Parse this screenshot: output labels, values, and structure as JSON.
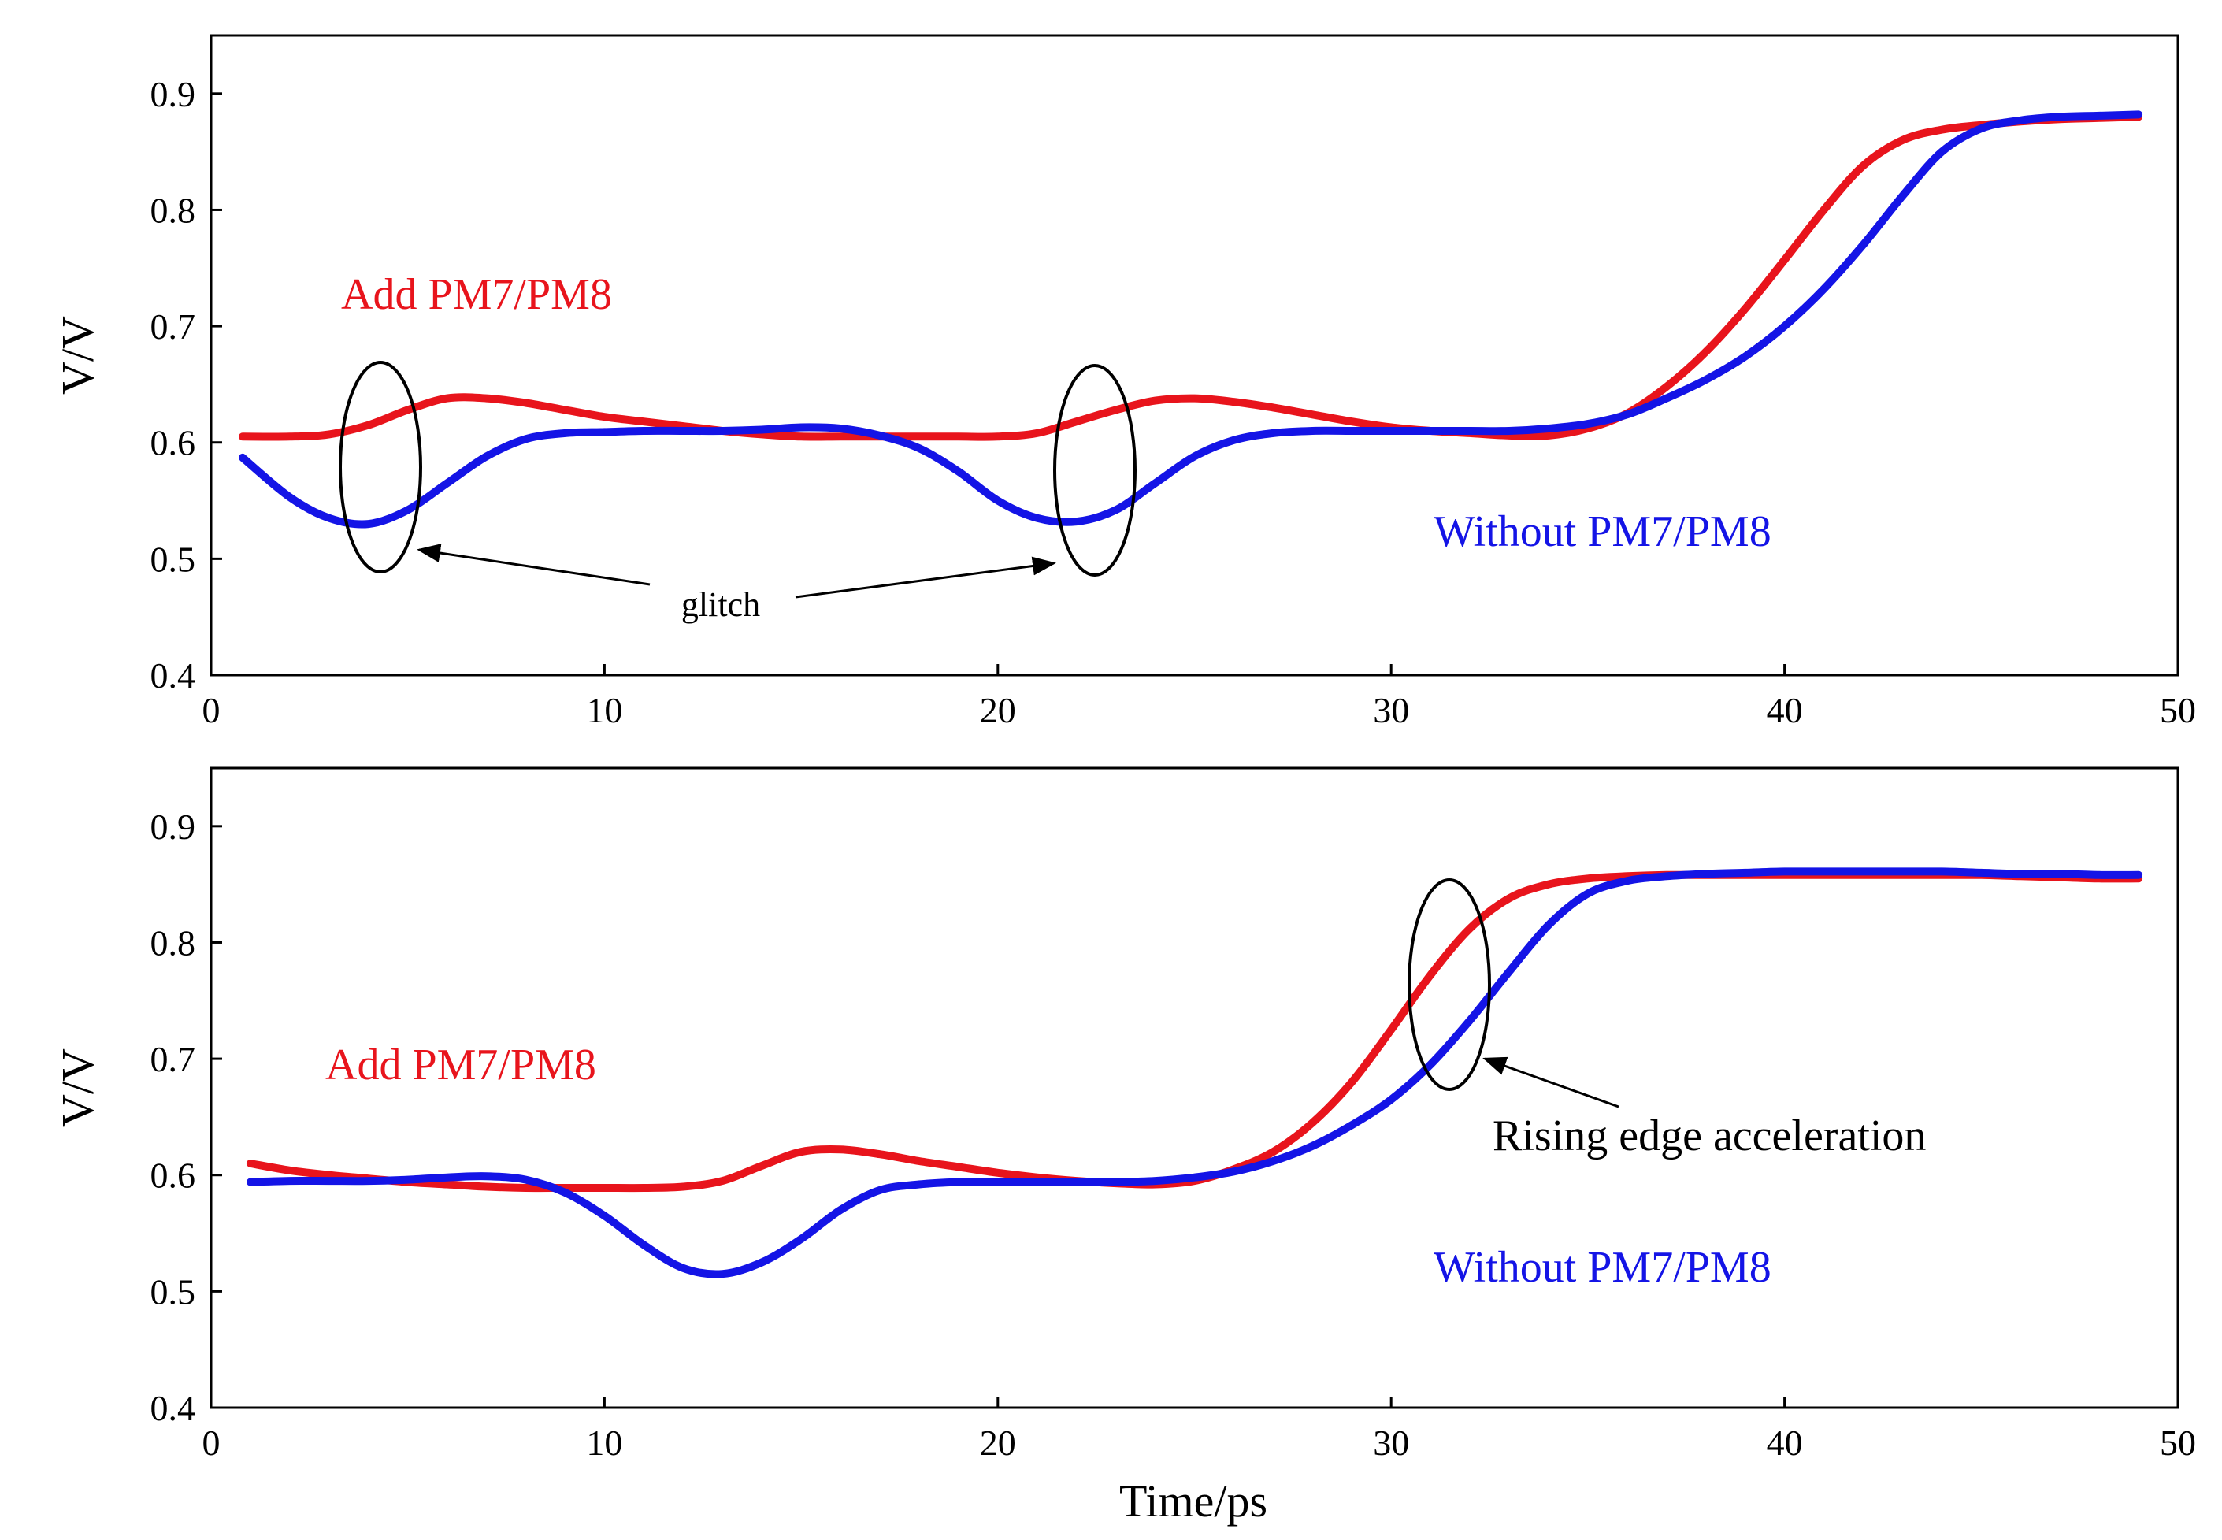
{
  "chart_data": [
    {
      "type": "line",
      "title": "",
      "xlabel": "",
      "ylabel": "V/V",
      "xlim": [
        0,
        50
      ],
      "ylim": [
        0.4,
        0.95
      ],
      "xticks": [
        0,
        10,
        20,
        30,
        40,
        50
      ],
      "yticks": [
        0.4,
        0.5,
        0.6,
        0.7,
        0.8,
        0.9
      ],
      "series": [
        {
          "name": "Add PM7/PM8",
          "color": "#e8141c",
          "x": [
            0.8,
            2,
            3,
            4,
            5,
            6,
            7,
            8,
            9,
            10,
            11,
            12,
            13,
            14,
            15,
            16,
            17,
            18,
            19,
            20,
            21,
            22,
            23,
            24,
            25,
            26,
            27,
            28,
            29,
            30,
            31,
            32,
            33,
            34,
            35,
            36,
            37,
            38,
            39,
            40,
            41,
            42,
            43,
            44,
            45,
            46,
            47,
            48,
            49
          ],
          "y": [
            0.605,
            0.605,
            0.607,
            0.615,
            0.628,
            0.638,
            0.638,
            0.634,
            0.628,
            0.622,
            0.618,
            0.614,
            0.61,
            0.607,
            0.605,
            0.605,
            0.605,
            0.605,
            0.605,
            0.605,
            0.608,
            0.618,
            0.628,
            0.636,
            0.638,
            0.635,
            0.63,
            0.624,
            0.618,
            0.613,
            0.61,
            0.608,
            0.606,
            0.606,
            0.612,
            0.625,
            0.648,
            0.678,
            0.715,
            0.757,
            0.8,
            0.838,
            0.86,
            0.869,
            0.873,
            0.876,
            0.878,
            0.879,
            0.88
          ]
        },
        {
          "name": "Without PM7/PM8",
          "color": "#1414e6",
          "x": [
            0.8,
            2,
            3,
            4,
            5,
            6,
            7,
            8,
            9,
            10,
            11,
            12,
            13,
            14,
            15,
            16,
            17,
            18,
            19,
            20,
            21,
            22,
            23,
            24,
            25,
            26,
            27,
            28,
            29,
            30,
            31,
            32,
            33,
            34,
            35,
            36,
            37,
            38,
            39,
            40,
            41,
            42,
            43,
            44,
            45,
            46,
            47,
            48,
            49
          ],
          "y": [
            0.587,
            0.553,
            0.535,
            0.53,
            0.542,
            0.565,
            0.588,
            0.603,
            0.608,
            0.609,
            0.61,
            0.61,
            0.61,
            0.611,
            0.613,
            0.612,
            0.606,
            0.595,
            0.575,
            0.55,
            0.535,
            0.532,
            0.542,
            0.565,
            0.588,
            0.602,
            0.608,
            0.61,
            0.61,
            0.61,
            0.61,
            0.61,
            0.61,
            0.612,
            0.616,
            0.624,
            0.638,
            0.654,
            0.674,
            0.7,
            0.732,
            0.77,
            0.812,
            0.85,
            0.87,
            0.877,
            0.88,
            0.881,
            0.882
          ]
        }
      ],
      "annotations": {
        "add_label": "Add PM7/PM8",
        "without_label": "Without PM7/PM8",
        "note": "glitch",
        "ellipse_centers": [
          [
            4.3,
            0.58
          ],
          [
            22.5,
            0.58
          ]
        ]
      }
    },
    {
      "type": "line",
      "title": "",
      "xlabel": "Time/ps",
      "ylabel": "V/V",
      "xlim": [
        0,
        50
      ],
      "ylim": [
        0.4,
        0.95
      ],
      "xticks": [
        0,
        10,
        20,
        30,
        40,
        50
      ],
      "yticks": [
        0.4,
        0.5,
        0.6,
        0.7,
        0.8,
        0.9
      ],
      "series": [
        {
          "name": "Add PM7/PM8",
          "color": "#e8141c",
          "x": [
            1,
            2,
            3,
            4,
            5,
            6,
            7,
            8,
            9,
            10,
            11,
            12,
            13,
            14,
            15,
            16,
            17,
            18,
            19,
            20,
            21,
            22,
            23,
            24,
            25,
            26,
            27,
            28,
            29,
            30,
            31,
            32,
            33,
            34,
            35,
            36,
            37,
            38,
            39,
            40,
            41,
            42,
            43,
            44,
            45,
            46,
            47,
            48,
            49
          ],
          "y": [
            0.61,
            0.604,
            0.6,
            0.597,
            0.594,
            0.592,
            0.59,
            0.589,
            0.589,
            0.589,
            0.589,
            0.59,
            0.595,
            0.608,
            0.62,
            0.622,
            0.618,
            0.612,
            0.607,
            0.602,
            0.598,
            0.595,
            0.593,
            0.592,
            0.595,
            0.605,
            0.62,
            0.645,
            0.68,
            0.725,
            0.772,
            0.812,
            0.838,
            0.85,
            0.855,
            0.857,
            0.858,
            0.858,
            0.858,
            0.858,
            0.858,
            0.858,
            0.858,
            0.858,
            0.858,
            0.857,
            0.856,
            0.855,
            0.855
          ]
        },
        {
          "name": "Without PM7/PM8",
          "color": "#1414e6",
          "x": [
            1,
            2,
            3,
            4,
            5,
            6,
            7,
            8,
            9,
            10,
            11,
            12,
            13,
            14,
            15,
            16,
            17,
            18,
            19,
            20,
            21,
            22,
            23,
            24,
            25,
            26,
            27,
            28,
            29,
            30,
            31,
            32,
            33,
            34,
            35,
            36,
            37,
            38,
            39,
            40,
            41,
            42,
            43,
            44,
            45,
            46,
            47,
            48,
            49
          ],
          "y": [
            0.594,
            0.595,
            0.595,
            0.595,
            0.596,
            0.598,
            0.599,
            0.596,
            0.585,
            0.565,
            0.54,
            0.52,
            0.515,
            0.525,
            0.545,
            0.57,
            0.587,
            0.592,
            0.594,
            0.594,
            0.594,
            0.594,
            0.594,
            0.595,
            0.598,
            0.603,
            0.612,
            0.625,
            0.643,
            0.665,
            0.695,
            0.733,
            0.775,
            0.815,
            0.842,
            0.853,
            0.857,
            0.859,
            0.86,
            0.861,
            0.861,
            0.861,
            0.861,
            0.861,
            0.86,
            0.859,
            0.859,
            0.858,
            0.858
          ]
        }
      ],
      "annotations": {
        "add_label": "Add PM7/PM8",
        "without_label": "Without PM7/PM8",
        "note": "Rising edge acceleration",
        "ellipse_centers": [
          [
            31.5,
            0.765
          ]
        ]
      }
    }
  ]
}
